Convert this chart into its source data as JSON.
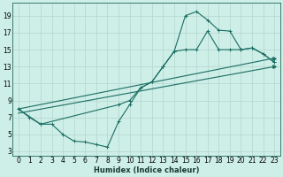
{
  "xlabel": "Humidex (Indice chaleur)",
  "background_color": "#ceeee8",
  "grid_color": "#b8d8d2",
  "line_color": "#1a6e62",
  "xlim": [
    -0.5,
    23.5
  ],
  "ylim": [
    2.5,
    20.5
  ],
  "xticks": [
    0,
    1,
    2,
    3,
    4,
    5,
    6,
    7,
    8,
    9,
    10,
    11,
    12,
    13,
    14,
    15,
    16,
    17,
    18,
    19,
    20,
    21,
    22,
    23
  ],
  "yticks": [
    3,
    5,
    7,
    9,
    11,
    13,
    15,
    17,
    19
  ],
  "curve1_x": [
    0,
    1,
    2,
    3,
    4,
    5,
    6,
    7,
    8,
    9,
    10,
    11,
    12,
    13,
    14,
    15,
    16,
    17,
    18,
    19,
    20,
    21,
    22,
    23
  ],
  "curve1_y": [
    8.0,
    7.0,
    6.2,
    6.2,
    5.0,
    4.2,
    4.1,
    3.8,
    3.5,
    6.5,
    8.5,
    10.5,
    11.2,
    13.0,
    14.8,
    19.0,
    19.5,
    18.5,
    17.3,
    17.2,
    15.0,
    15.2,
    14.5,
    13.5
  ],
  "curve2_x": [
    0,
    2,
    9,
    10,
    11,
    12,
    13,
    14,
    15,
    16,
    17,
    18,
    19,
    20,
    21,
    22,
    23
  ],
  "curve2_y": [
    8.0,
    6.2,
    8.5,
    9.0,
    10.5,
    11.2,
    13.0,
    14.8,
    15.0,
    15.0,
    17.2,
    15.0,
    15.0,
    15.0,
    15.2,
    14.5,
    13.5
  ],
  "curve3_x": [
    0,
    23
  ],
  "curve3_y": [
    8.0,
    14.0
  ],
  "curve4_x": [
    0,
    23
  ],
  "curve4_y": [
    7.5,
    13.0
  ]
}
